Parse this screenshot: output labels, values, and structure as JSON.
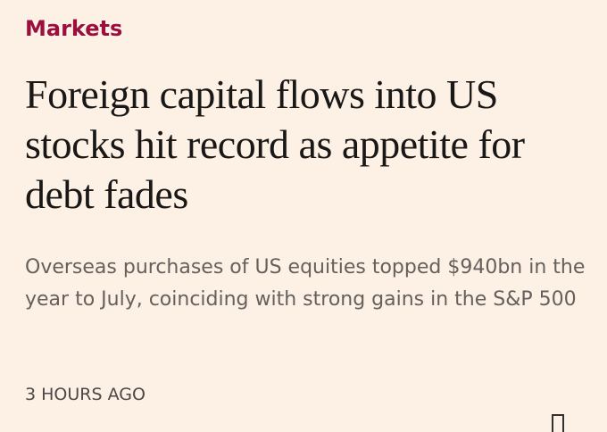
{
  "section": "Markets",
  "headline": "Foreign capital flows into US stocks hit record as appetite for debt fades",
  "standfirst": "Overseas purchases of US equities topped $940bn in the year to July, coinciding with strong gains in the S&P 500",
  "timestamp": "3 HOURS AGO"
}
